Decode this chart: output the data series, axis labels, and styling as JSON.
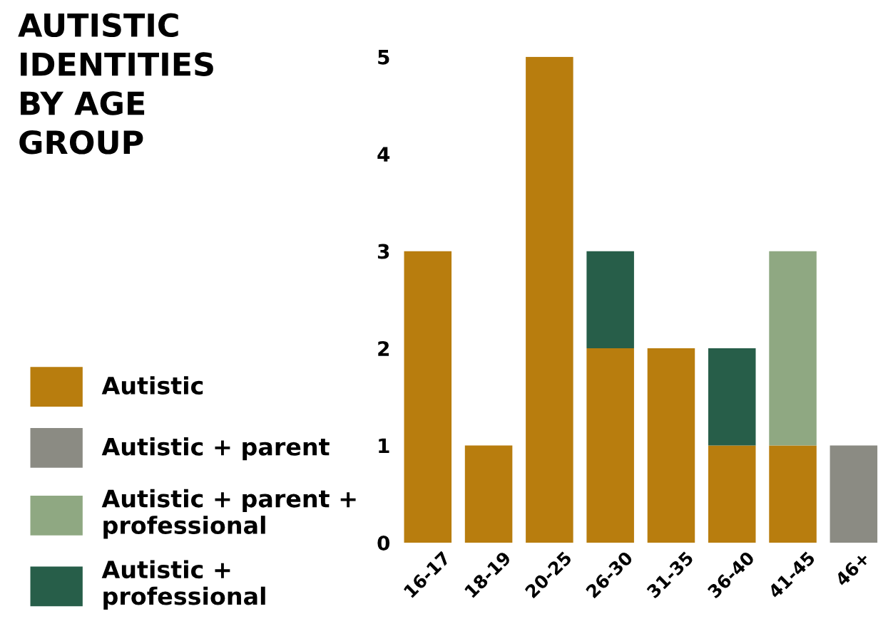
{
  "chart_data": {
    "type": "bar",
    "title": "AUTISTIC\nIDENTITIES\nBY AGE\nGROUP",
    "stacked": true,
    "categories": [
      "16-17",
      "18-19",
      "20-25",
      "26-30",
      "31-35",
      "36-40",
      "41-45",
      "46+"
    ],
    "series": [
      {
        "name": "Autistic",
        "color": "#b87d0e",
        "values": [
          3,
          1,
          5,
          2,
          2,
          1,
          1,
          null
        ]
      },
      {
        "name": "Autistic + parent",
        "color": "#8b8b83",
        "values": [
          null,
          null,
          null,
          null,
          null,
          null,
          null,
          1
        ]
      },
      {
        "name": "Autistic + parent + professional",
        "color": "#8fa882",
        "values": [
          null,
          null,
          null,
          null,
          null,
          null,
          2,
          null
        ]
      },
      {
        "name": "Autistic + professional",
        "color": "#275e49",
        "values": [
          null,
          null,
          null,
          1,
          null,
          1,
          null,
          null
        ]
      }
    ],
    "ylim": [
      0,
      5
    ],
    "yticks": [
      0,
      1,
      2,
      3,
      4,
      5
    ],
    "grid": false,
    "legend": "left"
  }
}
